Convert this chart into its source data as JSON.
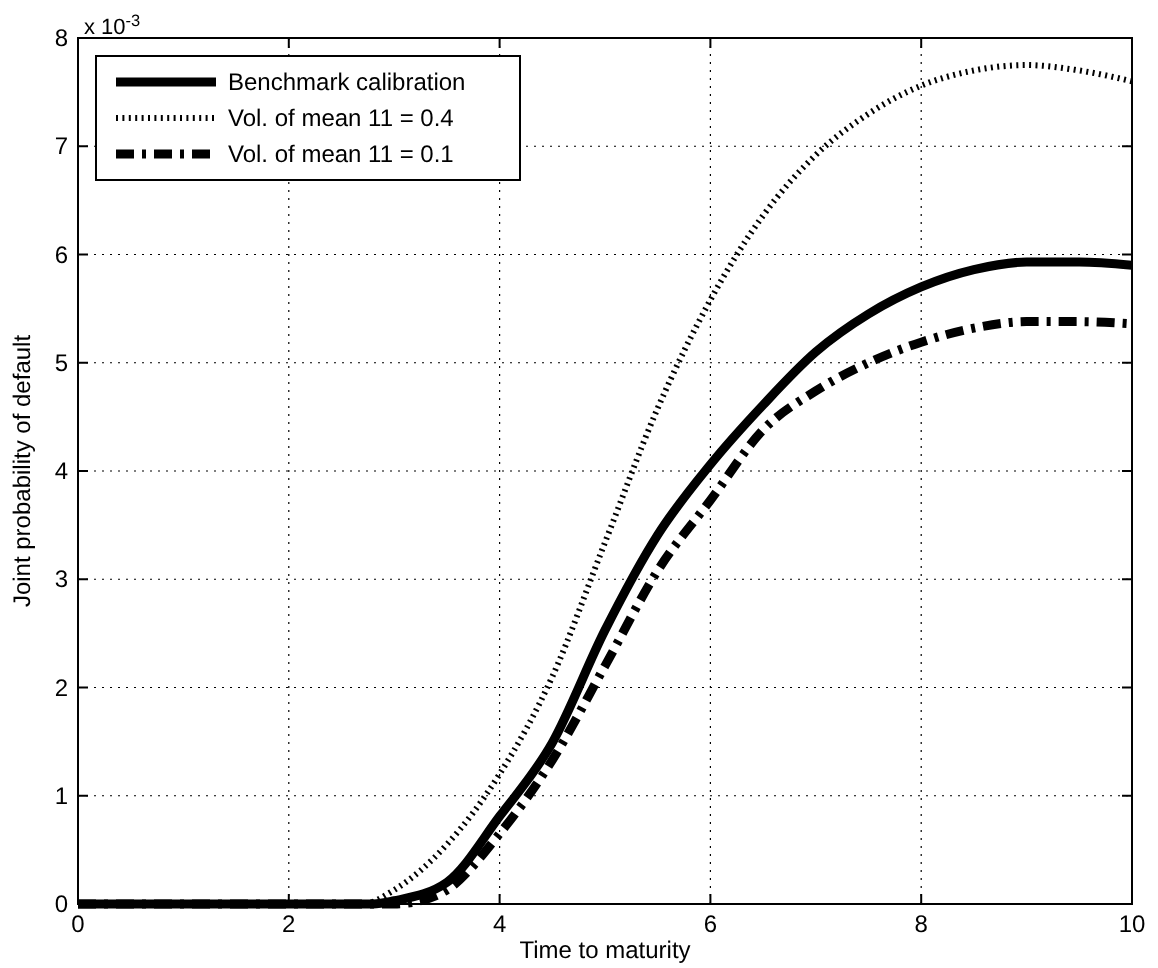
{
  "chart_data": {
    "type": "line",
    "xlabel": "Time to maturity",
    "ylabel": "Joint probability of default",
    "annotations": [
      "x 10$^{-3}$"
    ],
    "xlim": [
      0,
      10
    ],
    "xticks": [
      0,
      2,
      4,
      6,
      8,
      10
    ],
    "ylim": [
      0,
      8
    ],
    "yticks": [
      0,
      1,
      2,
      3,
      4,
      5,
      6,
      7,
      8
    ],
    "grid": true,
    "legend": "top left",
    "marker": "none",
    "series": [
      {
        "name": "Benchmark calibration",
        "color": "#000000",
        "line_style": "solid",
        "x": [
          0,
          1,
          2,
          2.8,
          3,
          3.5,
          4,
          4.5,
          5,
          5.5,
          6,
          6.5,
          7,
          7.5,
          8,
          8.5,
          9,
          9.5,
          10
        ],
        "values": [
          0,
          0,
          0,
          0,
          0.03,
          0.2,
          0.81,
          1.49,
          2.53,
          3.41,
          4.06,
          4.61,
          5.1,
          5.45,
          5.7,
          5.86,
          5.93,
          5.93,
          5.9
        ]
      },
      {
        "name": "Vol. of mean 11 = 0.4",
        "color": "#000000",
        "line_style": "dotted",
        "x": [
          0,
          1,
          2,
          2.7,
          3,
          3.5,
          4,
          4.5,
          5,
          5.5,
          6,
          6.5,
          7,
          7.5,
          8,
          8.5,
          9,
          9.5,
          10
        ],
        "values": [
          0,
          0,
          0,
          0,
          0.13,
          0.55,
          1.2,
          2.1,
          3.34,
          4.58,
          5.58,
          6.36,
          6.92,
          7.3,
          7.56,
          7.7,
          7.75,
          7.7,
          7.6
        ]
      },
      {
        "name": "Vol. of mean 11 = 0.1",
        "color": "#000000",
        "line_style": "dashed",
        "x": [
          0,
          1,
          2,
          3,
          3.2,
          3.5,
          4,
          4.5,
          5,
          5.5,
          6,
          6.5,
          7,
          7.5,
          8,
          8.5,
          9,
          9.5,
          10
        ],
        "values": [
          0,
          0,
          0,
          0,
          0.02,
          0.13,
          0.65,
          1.33,
          2.2,
          3.08,
          3.73,
          4.38,
          4.74,
          5.0,
          5.19,
          5.32,
          5.38,
          5.38,
          5.36
        ]
      }
    ]
  }
}
